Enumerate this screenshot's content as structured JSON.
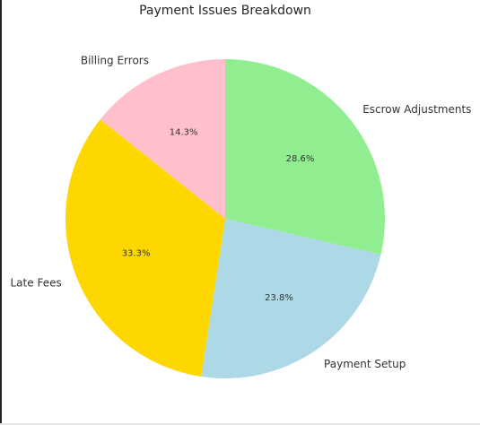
{
  "chart_data": {
    "type": "pie",
    "title": "Payment Issues Breakdown",
    "categories": [
      "Escrow Adjustments",
      "Payment Setup",
      "Late Fees",
      "Billing Errors"
    ],
    "values": [
      28.6,
      23.8,
      33.3,
      14.3
    ],
    "percent_labels": [
      "28.6%",
      "23.8%",
      "33.3%",
      "14.3%"
    ],
    "colors": [
      "#90ee90",
      "#add8e6",
      "#ffd700",
      "#ffc0cb"
    ],
    "start_angle_deg": 90,
    "direction": "clockwise",
    "legend": "none"
  }
}
